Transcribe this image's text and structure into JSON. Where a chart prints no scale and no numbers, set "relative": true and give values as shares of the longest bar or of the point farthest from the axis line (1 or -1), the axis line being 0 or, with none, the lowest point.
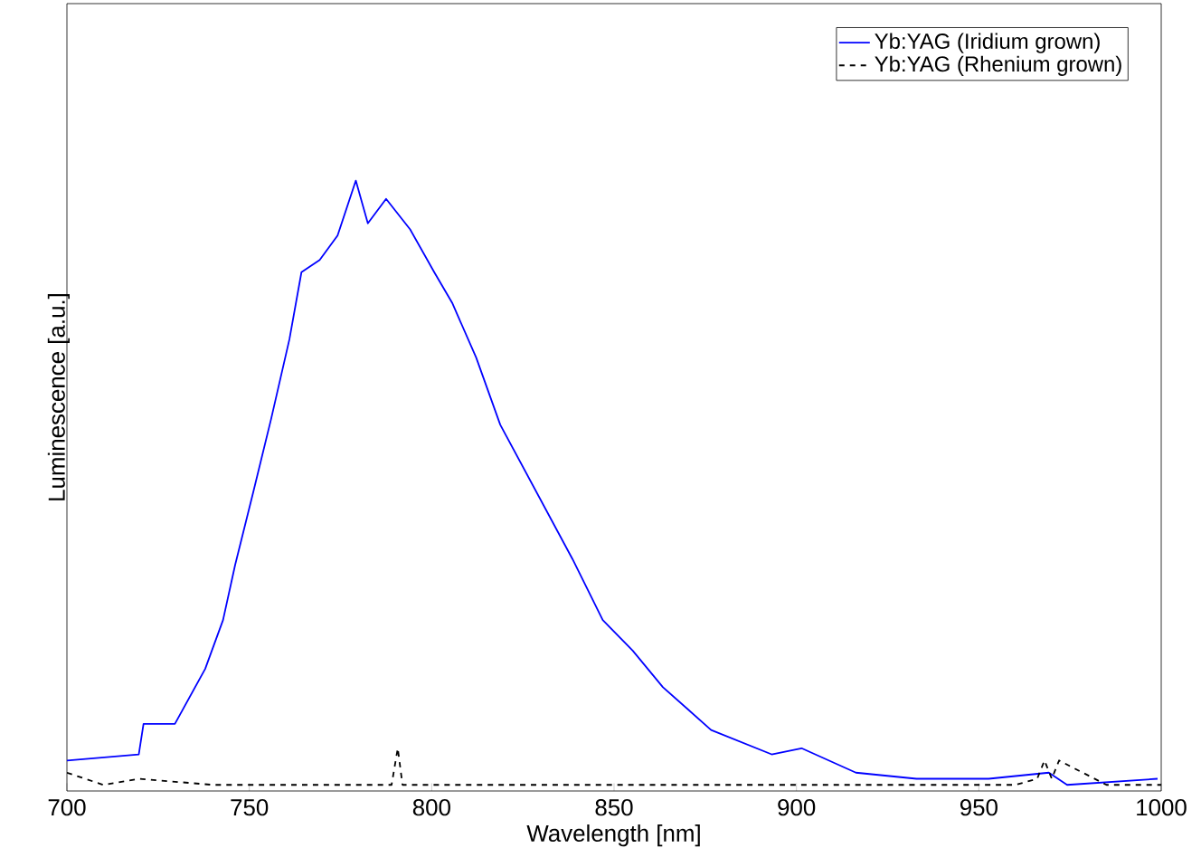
{
  "chart_data": {
    "type": "line",
    "xlabel": "Wavelength [nm]",
    "ylabel": "Luminescence [a.u.]",
    "relative": true,
    "xlim": [
      700,
      1000
    ],
    "xticks": [
      700,
      750,
      800,
      850,
      900,
      950,
      1000
    ],
    "legend": "top right",
    "grid": false,
    "marker": "none",
    "series": [
      {
        "name": "Yb:YAG (Iridium grown)",
        "color": "#0000ff",
        "line_style": "solid",
        "x": [
          700,
          719.7,
          721,
          729.6,
          737.9,
          742.8,
          746.1,
          751.1,
          756,
          761,
          764.3,
          769.3,
          774.2,
          779.2,
          782.5,
          787.5,
          794.1,
          800.7,
          805.6,
          812.2,
          818.8,
          828.7,
          838.6,
          846.9,
          855.1,
          863.4,
          876.6,
          893.2,
          901.4,
          916.3,
          932.9,
          952.7,
          969.2,
          974.2,
          999
        ],
        "values": [
          0.05,
          0.06,
          0.11,
          0.11,
          0.2,
          0.28,
          0.37,
          0.49,
          0.61,
          0.74,
          0.85,
          0.87,
          0.91,
          1.0,
          0.93,
          0.97,
          0.92,
          0.85,
          0.8,
          0.71,
          0.6,
          0.49,
          0.38,
          0.28,
          0.23,
          0.17,
          0.1,
          0.06,
          0.07,
          0.03,
          0.02,
          0.02,
          0.03,
          0.01,
          0.02
        ]
      },
      {
        "name": "Yb:YAG (Rhenium grown)",
        "color": "#000000",
        "line_style": "dashed",
        "x": [
          700,
          710,
          720,
          740,
          760,
          780,
          789,
          790.7,
          792,
          810,
          840,
          870,
          900,
          930,
          960,
          966,
          968,
          970,
          972,
          985,
          1000
        ],
        "values": [
          0.03,
          0.01,
          0.02,
          0.01,
          0.01,
          0.01,
          0.01,
          0.07,
          0.01,
          0.01,
          0.01,
          0.01,
          0.01,
          0.01,
          0.01,
          0.02,
          0.05,
          0.02,
          0.05,
          0.01,
          0.01
        ]
      }
    ]
  }
}
